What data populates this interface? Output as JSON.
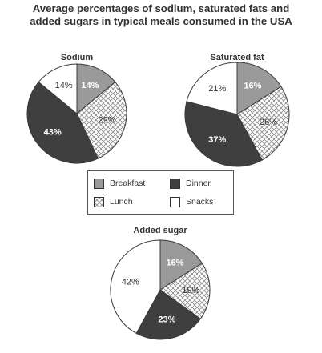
{
  "title_lines": [
    "Average percentages of sodium, saturated fats and",
    "added sugars in typical meals consumed in the USA"
  ],
  "colors": {
    "breakfast": "#9a9a9a",
    "lunch": "crosshatch",
    "dinner": "#3f3f3f",
    "snacks": "#ffffff",
    "outline": "#3a3a3a"
  },
  "legend": {
    "placement": "center",
    "items": [
      {
        "key": "breakfast",
        "label": "Breakfast"
      },
      {
        "key": "dinner",
        "label": "Dinner"
      },
      {
        "key": "lunch",
        "label": "Lunch"
      },
      {
        "key": "snacks",
        "label": "Snacks"
      }
    ]
  },
  "chart_data": [
    {
      "type": "pie",
      "title": "Sodium",
      "slices": [
        {
          "category": "Breakfast",
          "key": "breakfast",
          "value": 14,
          "label": "14%"
        },
        {
          "category": "Lunch",
          "key": "lunch",
          "value": 29,
          "label": "29%"
        },
        {
          "category": "Dinner",
          "key": "dinner",
          "value": 43,
          "label": "43%"
        },
        {
          "category": "Snacks",
          "key": "snacks",
          "value": 14,
          "label": "14%"
        }
      ]
    },
    {
      "type": "pie",
      "title": "Saturated fat",
      "slices": [
        {
          "category": "Breakfast",
          "key": "breakfast",
          "value": 16,
          "label": "16%"
        },
        {
          "category": "Lunch",
          "key": "lunch",
          "value": 26,
          "label": "26%"
        },
        {
          "category": "Dinner",
          "key": "dinner",
          "value": 37,
          "label": "37%"
        },
        {
          "category": "Snacks",
          "key": "snacks",
          "value": 21,
          "label": "21%"
        }
      ]
    },
    {
      "type": "pie",
      "title": "Added sugar",
      "slices": [
        {
          "category": "Breakfast",
          "key": "breakfast",
          "value": 16,
          "label": "16%"
        },
        {
          "category": "Lunch",
          "key": "lunch",
          "value": 19,
          "label": "19%"
        },
        {
          "category": "Dinner",
          "key": "dinner",
          "value": 23,
          "label": "23%"
        },
        {
          "category": "Snacks",
          "key": "snacks",
          "value": 42,
          "label": "42%"
        }
      ]
    }
  ]
}
